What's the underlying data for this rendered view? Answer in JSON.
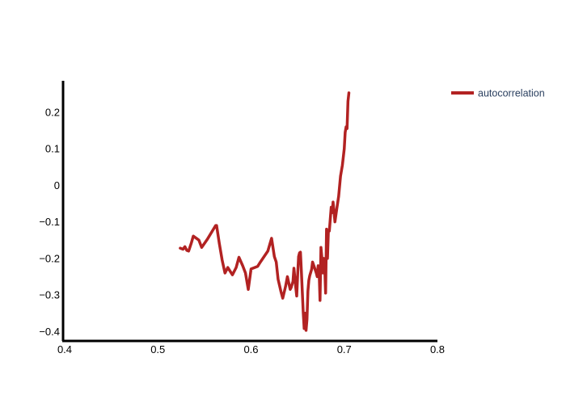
{
  "chart_data": {
    "type": "line",
    "title": "",
    "xlabel": "",
    "ylabel": "",
    "xlim": [
      0.4,
      0.8
    ],
    "ylim": [
      -0.4215,
      0.286
    ],
    "x_ticks": [
      0.4,
      0.5,
      0.6,
      0.7,
      0.8
    ],
    "x_tick_labels": [
      "0.4",
      "0.5",
      "0.6",
      "0.7",
      "0.8"
    ],
    "y_ticks": [
      0.2,
      0.1,
      0,
      -0.1,
      -0.2,
      -0.3,
      -0.4
    ],
    "y_tick_labels": [
      "0.2",
      "0.1",
      "0",
      "−0.1",
      "−0.2",
      "−0.3",
      "−0.4"
    ],
    "grid": false,
    "legend_position": "top-right",
    "series": [
      {
        "name": "autocorrelation",
        "color": "#b22222",
        "points": [
          [
            0.524,
            -0.172
          ],
          [
            0.527,
            -0.175
          ],
          [
            0.529,
            -0.168
          ],
          [
            0.531,
            -0.178
          ],
          [
            0.533,
            -0.18
          ],
          [
            0.536,
            -0.157
          ],
          [
            0.538,
            -0.139
          ],
          [
            0.544,
            -0.15
          ],
          [
            0.547,
            -0.17
          ],
          [
            0.553,
            -0.148
          ],
          [
            0.562,
            -0.11
          ],
          [
            0.563,
            -0.11
          ],
          [
            0.566,
            -0.16
          ],
          [
            0.569,
            -0.205
          ],
          [
            0.572,
            -0.24
          ],
          [
            0.575,
            -0.225
          ],
          [
            0.58,
            -0.245
          ],
          [
            0.584,
            -0.225
          ],
          [
            0.587,
            -0.197
          ],
          [
            0.591,
            -0.22
          ],
          [
            0.594,
            -0.24
          ],
          [
            0.597,
            -0.285
          ],
          [
            0.6,
            -0.229
          ],
          [
            0.607,
            -0.222
          ],
          [
            0.61,
            -0.21
          ],
          [
            0.618,
            -0.18
          ],
          [
            0.622,
            -0.145
          ],
          [
            0.625,
            -0.195
          ],
          [
            0.627,
            -0.21
          ],
          [
            0.629,
            -0.257
          ],
          [
            0.632,
            -0.29
          ],
          [
            0.634,
            -0.309
          ],
          [
            0.637,
            -0.277
          ],
          [
            0.639,
            -0.25
          ],
          [
            0.642,
            -0.285
          ],
          [
            0.643,
            -0.28
          ],
          [
            0.645,
            -0.263
          ],
          [
            0.646,
            -0.227
          ],
          [
            0.648,
            -0.28
          ],
          [
            0.649,
            -0.303
          ],
          [
            0.65,
            -0.245
          ],
          [
            0.651,
            -0.195
          ],
          [
            0.652,
            -0.185
          ],
          [
            0.653,
            -0.183
          ],
          [
            0.654,
            -0.236
          ],
          [
            0.656,
            -0.349
          ],
          [
            0.657,
            -0.392
          ],
          [
            0.658,
            -0.35
          ],
          [
            0.659,
            -0.397
          ],
          [
            0.66,
            -0.367
          ],
          [
            0.661,
            -0.29
          ],
          [
            0.662,
            -0.26
          ],
          [
            0.663,
            -0.247
          ],
          [
            0.665,
            -0.23
          ],
          [
            0.666,
            -0.21
          ],
          [
            0.668,
            -0.225
          ],
          [
            0.67,
            -0.24
          ],
          [
            0.671,
            -0.25
          ],
          [
            0.672,
            -0.22
          ],
          [
            0.673,
            -0.232
          ],
          [
            0.674,
            -0.315
          ],
          [
            0.675,
            -0.17
          ],
          [
            0.676,
            -0.198
          ],
          [
            0.677,
            -0.24
          ],
          [
            0.678,
            -0.2
          ],
          [
            0.679,
            -0.22
          ],
          [
            0.68,
            -0.295
          ],
          [
            0.681,
            -0.12
          ],
          [
            0.682,
            -0.2
          ],
          [
            0.683,
            -0.123
          ],
          [
            0.684,
            -0.125
          ],
          [
            0.686,
            -0.06
          ],
          [
            0.687,
            -0.075
          ],
          [
            0.688,
            -0.046
          ],
          [
            0.689,
            -0.071
          ],
          [
            0.69,
            -0.1
          ],
          [
            0.692,
            -0.064
          ],
          [
            0.694,
            -0.03
          ],
          [
            0.696,
            0.025
          ],
          [
            0.698,
            0.055
          ],
          [
            0.7,
            0.1
          ],
          [
            0.701,
            0.145
          ],
          [
            0.702,
            0.16
          ],
          [
            0.703,
            0.155
          ],
          [
            0.704,
            0.23
          ],
          [
            0.705,
            0.253
          ]
        ]
      }
    ]
  }
}
